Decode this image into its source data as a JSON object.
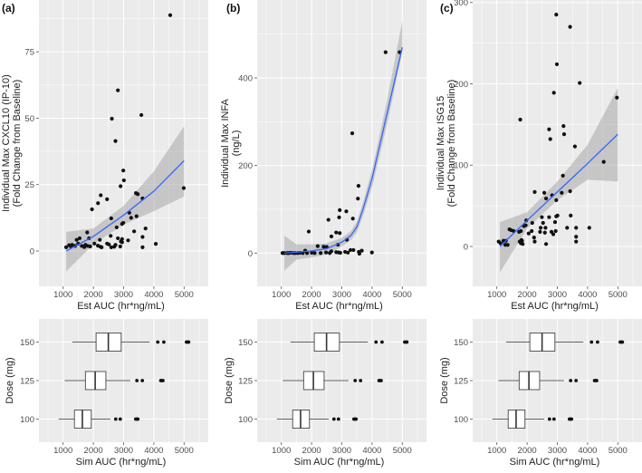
{
  "panel_labels": [
    "(a)",
    "(b)",
    "(c)"
  ],
  "colors": {
    "panel_bg": "#ebebeb",
    "grid": "#ffffff",
    "point": "#111111",
    "fit_line": "#3366ff",
    "band": "#999999",
    "box_fill": "#ffffff",
    "box_line": "#333333"
  },
  "chart_data": [
    {
      "type": "scatter",
      "panel": "(a)",
      "xlabel": "Est AUC (hr*ng/mL)",
      "ylabel": [
        "Individual Max CXCL10 (IP-10)",
        "(Fold Change from Baseline)"
      ],
      "xlim": [
        200,
        5800
      ],
      "ylim": [
        -13.3,
        94.5
      ],
      "xticks": [
        1000,
        2000,
        3000,
        4000,
        5000
      ],
      "xtick_labels": [
        "1000",
        "2000",
        "3000",
        "4000",
        "5000"
      ],
      "yticks": [
        0,
        25,
        50,
        75
      ],
      "ytick_labels": [
        "0",
        "25",
        "50",
        "75"
      ],
      "yminor": [
        12.5,
        37.5,
        62.5,
        87.5
      ],
      "points": [
        [
          4542,
          88.8
        ],
        [
          2811,
          60.5
        ],
        [
          2612,
          49.8
        ],
        [
          3587,
          51.2
        ],
        [
          2731,
          41.4
        ],
        [
          2990,
          30.3
        ],
        [
          3010,
          26.6
        ],
        [
          2900,
          24.4
        ],
        [
          4990,
          23.7
        ],
        [
          2244,
          21
        ],
        [
          2154,
          18
        ],
        [
          2453,
          19.5
        ],
        [
          1955,
          15.7
        ],
        [
          3408,
          21.8
        ],
        [
          3468,
          21.4
        ],
        [
          3627,
          19.8
        ],
        [
          2592,
          12.3
        ],
        [
          3189,
          14.4
        ],
        [
          3249,
          12.5
        ],
        [
          3428,
          13.1
        ],
        [
          3726,
          8.5
        ],
        [
          2950,
          10.2
        ],
        [
          2990,
          10.6
        ],
        [
          2771,
          8.9
        ],
        [
          3348,
          7.4
        ],
        [
          3149,
          4.0
        ],
        [
          3627,
          5.3
        ],
        [
          3627,
          1.4
        ],
        [
          4065,
          2.7
        ],
        [
          2572,
          5.7
        ],
        [
          2811,
          4.8
        ],
        [
          2950,
          4.5
        ],
        [
          2910,
          3.6
        ],
        [
          2890,
          1.7
        ],
        [
          2691,
          1.6
        ],
        [
          2592,
          1.4
        ],
        [
          2453,
          2.8
        ],
        [
          2512,
          2.5
        ],
        [
          2214,
          4.2
        ],
        [
          2234,
          1.6
        ],
        [
          2035,
          2.8
        ],
        [
          1896,
          1.7
        ],
        [
          1796,
          7.0
        ],
        [
          1856,
          4.8
        ],
        [
          1736,
          2.3
        ],
        [
          1816,
          1.9
        ],
        [
          1547,
          4.8
        ],
        [
          1448,
          4.2
        ],
        [
          1498,
          2.8
        ],
        [
          1299,
          2.3
        ],
        [
          1199,
          2.2
        ],
        [
          1100,
          1.4
        ],
        [
          1398,
          1.9
        ],
        [
          1617,
          1.9
        ],
        [
          2274,
          1.4
        ],
        [
          2731,
          2.3
        ],
        [
          2950,
          3.3
        ],
        [
          1250,
          1.8
        ],
        [
          1700,
          1.5
        ],
        [
          2150,
          2.0
        ]
      ],
      "fit": {
        "x": [
          1100,
          2000,
          3000,
          4000,
          5000
        ],
        "y": [
          0,
          5.5,
          13.5,
          22.5,
          34
        ],
        "lo": [
          -7.7,
          2.5,
          10,
          15,
          20.5
        ],
        "hi": [
          7.2,
          8.5,
          17,
          30,
          47
        ]
      }
    },
    {
      "type": "scatter",
      "panel": "(b)",
      "xlabel": "Est AUC (hr*ng/mL)",
      "ylabel": [
        "Individual Max INFA",
        "(ng/L)"
      ],
      "xlim": [
        200,
        5800
      ],
      "ylim": [
        -76,
        578
      ],
      "xticks": [
        1000,
        2000,
        3000,
        4000,
        5000
      ],
      "xtick_labels": [
        "1000",
        "2000",
        "3000",
        "4000",
        "5000"
      ],
      "yticks": [
        0,
        200,
        400
      ],
      "ytick_labels": [
        "0",
        "200",
        "400"
      ],
      "yminor": [
        100,
        300,
        500
      ],
      "points": [
        [
          4448,
          458.7
        ],
        [
          4911,
          458.7
        ],
        [
          3345,
          273.6
        ],
        [
          3552,
          153.4
        ],
        [
          3532,
          124.4
        ],
        [
          2931,
          98.1
        ],
        [
          3148,
          95.3
        ],
        [
          3365,
          78.8
        ],
        [
          2557,
          76.0
        ],
        [
          2911,
          81.5
        ],
        [
          1906,
          49.1
        ],
        [
          2655,
          38.0
        ],
        [
          2813,
          47.0
        ],
        [
          2931,
          45.6
        ],
        [
          3167,
          30.4
        ],
        [
          2872,
          19.3
        ],
        [
          2202,
          15.9
        ],
        [
          2399,
          14.5
        ],
        [
          2500,
          14.0
        ],
        [
          3286,
          6.9
        ],
        [
          3384,
          6.9
        ],
        [
          3562,
          2.8
        ],
        [
          3660,
          5.5
        ],
        [
          3995,
          1.4
        ],
        [
          3108,
          2.8
        ],
        [
          2813,
          2.1
        ],
        [
          2892,
          1.4
        ],
        [
          2655,
          4.1
        ],
        [
          1788,
          5.5
        ],
        [
          1611,
          0.7
        ],
        [
          1315,
          0.7
        ],
        [
          1039,
          0
        ],
        [
          1197,
          0
        ],
        [
          1463,
          0
        ],
        [
          1709,
          0
        ],
        [
          2005,
          0.7
        ],
        [
          2300,
          0
        ],
        [
          2478,
          1.4
        ],
        [
          3581,
          -1.4
        ],
        [
          1100,
          0
        ],
        [
          1250,
          0
        ],
        [
          1400,
          0
        ],
        [
          1550,
          0
        ],
        [
          1850,
          0
        ],
        [
          2100,
          0
        ],
        [
          2600,
          0
        ],
        [
          2950,
          0.5
        ],
        [
          3200,
          1.0
        ]
      ],
      "fit": {
        "x": [
          1100,
          1500,
          2000,
          2500,
          3000,
          3300,
          3500,
          3700,
          4000,
          4500,
          5000
        ],
        "y": [
          0,
          2,
          5,
          10,
          25,
          40,
          60,
          100,
          170,
          320,
          470
        ],
        "lo": [
          -40,
          -15,
          -10,
          -3,
          15,
          30,
          48,
          85,
          150,
          295,
          460
        ],
        "hi": [
          40,
          20,
          20,
          22,
          35,
          50,
          72,
          115,
          190,
          350,
          530
        ]
      }
    },
    {
      "type": "scatter",
      "panel": "(c)",
      "xlabel": "Est AUC (hr*ng/mL)",
      "ylabel": [
        "Individual Max ISG15",
        "(Fold Change from Baseline)"
      ],
      "xlim": [
        200,
        5800
      ],
      "ylim": [
        -49,
        303
      ],
      "xticks": [
        1000,
        2000,
        3000,
        4000,
        5000
      ],
      "xtick_labels": [
        "1000",
        "2000",
        "3000",
        "4000",
        "5000"
      ],
      "yticks": [
        0,
        100,
        200,
        300
      ],
      "ytick_labels": [
        "0",
        "100",
        "200",
        "300"
      ],
      "yminor": [
        50,
        150,
        250
      ],
      "points": [
        [
          2965,
          285
        ],
        [
          3422,
          270
        ],
        [
          2985,
          224
        ],
        [
          3740,
          201
        ],
        [
          2886,
          189
        ],
        [
          4970,
          183
        ],
        [
          1774,
          156
        ],
        [
          3204,
          148
        ],
        [
          2727,
          144
        ],
        [
          3224,
          138
        ],
        [
          2767,
          132
        ],
        [
          3581,
          123
        ],
        [
          4534,
          104
        ],
        [
          3184,
          87
        ],
        [
          2251,
          67
        ],
        [
          3144,
          66
        ],
        [
          2568,
          66
        ],
        [
          3422,
          68
        ],
        [
          2826,
          63
        ],
        [
          2628,
          59
        ],
        [
          2965,
          57
        ],
        [
          1972,
          32
        ],
        [
          2171,
          29
        ],
        [
          2489,
          36
        ],
        [
          2727,
          36
        ],
        [
          2965,
          37
        ],
        [
          3005,
          38
        ],
        [
          3442,
          38
        ],
        [
          2528,
          29
        ],
        [
          2925,
          30
        ],
        [
          2449,
          23
        ],
        [
          2608,
          23
        ],
        [
          3323,
          23
        ],
        [
          3621,
          23
        ],
        [
          4057,
          23
        ],
        [
          2152,
          19
        ],
        [
          2429,
          18
        ],
        [
          2588,
          17
        ],
        [
          2866,
          15
        ],
        [
          2806,
          18
        ],
        [
          2945,
          19
        ],
        [
          3621,
          12
        ],
        [
          3621,
          6
        ],
        [
          2251,
          6
        ],
        [
          2231,
          11
        ],
        [
          2052,
          16
        ],
        [
          1953,
          26
        ],
        [
          1894,
          25
        ],
        [
          1794,
          19
        ],
        [
          1735,
          18
        ],
        [
          1476,
          20
        ],
        [
          1556,
          19
        ],
        [
          1417,
          21
        ],
        [
          1814,
          8
        ],
        [
          1834,
          7
        ],
        [
          1755,
          6
        ],
        [
          1794,
          4
        ],
        [
          1854,
          3
        ],
        [
          2628,
          3
        ],
        [
          1119,
          4
        ],
        [
          1218,
          7
        ],
        [
          1298,
          7
        ],
        [
          1278,
          2
        ],
        [
          1357,
          2
        ],
        [
          1060,
          6
        ]
      ],
      "fit": {
        "x": [
          1100,
          2000,
          3000,
          4000,
          5000
        ],
        "y": [
          0,
          32,
          67,
          102,
          138
        ],
        "lo": [
          -32,
          22,
          57,
          82,
          80
        ],
        "hi": [
          30,
          42,
          80,
          125,
          195
        ]
      }
    },
    {
      "type": "box",
      "panel": "(a)",
      "xlabel": "Sim AUC (hr*ng/mL)",
      "ylabel": "Dose (mg)",
      "xlim": [
        200,
        5800
      ],
      "xticks": [
        1000,
        2000,
        3000,
        4000,
        5000
      ],
      "xtick_labels": [
        "1000",
        "2000",
        "3000",
        "4000",
        "5000"
      ],
      "categories": [
        "100",
        "125",
        "150"
      ],
      "boxes": [
        {
          "dose": "100",
          "lower_whisker": 850,
          "q1": 1374,
          "median": 1636,
          "q3": 1930,
          "upper_whisker": 2565,
          "outliers": [
            2740,
            2890,
            3400,
            3440,
            3470
          ]
        },
        {
          "dose": "125",
          "lower_whisker": 1050,
          "q1": 1737,
          "median": 2060,
          "q3": 2414,
          "upper_whisker": 3220,
          "outliers": [
            3440,
            3620,
            4230,
            4260,
            4300
          ]
        },
        {
          "dose": "150",
          "lower_whisker": 1303,
          "q1": 2090,
          "median": 2495,
          "q3": 2920,
          "upper_whisker": 3860,
          "outliers": [
            4130,
            4330,
            5080,
            5120,
            5150
          ]
        }
      ]
    },
    {
      "type": "box",
      "panel": "(b)",
      "xlabel": "Sim AUC (hr*ng/mL)",
      "ylabel": "Dose (mg)",
      "xlim": [
        200,
        5800
      ],
      "xticks": [
        1000,
        2000,
        3000,
        4000,
        5000
      ],
      "xtick_labels": [
        "1000",
        "2000",
        "3000",
        "4000",
        "5000"
      ],
      "categories": [
        "100",
        "125",
        "150"
      ],
      "boxes": [
        {
          "dose": "100",
          "lower_whisker": 850,
          "q1": 1374,
          "median": 1636,
          "q3": 1930,
          "upper_whisker": 2565,
          "outliers": [
            2740,
            2890,
            3400,
            3440,
            3470
          ]
        },
        {
          "dose": "125",
          "lower_whisker": 1050,
          "q1": 1737,
          "median": 2060,
          "q3": 2414,
          "upper_whisker": 3220,
          "outliers": [
            3440,
            3620,
            4230,
            4260,
            4300
          ]
        },
        {
          "dose": "150",
          "lower_whisker": 1303,
          "q1": 2090,
          "median": 2495,
          "q3": 2920,
          "upper_whisker": 3860,
          "outliers": [
            4130,
            4330,
            5080,
            5120,
            5150
          ]
        }
      ]
    },
    {
      "type": "box",
      "panel": "(c)",
      "xlabel": "Sim AUC (hr*ng/mL)",
      "ylabel": "Dose (mg)",
      "xlim": [
        200,
        5800
      ],
      "xticks": [
        1000,
        2000,
        3000,
        4000,
        5000
      ],
      "xtick_labels": [
        "1000",
        "2000",
        "3000",
        "4000",
        "5000"
      ],
      "categories": [
        "100",
        "125",
        "150"
      ],
      "boxes": [
        {
          "dose": "100",
          "lower_whisker": 850,
          "q1": 1374,
          "median": 1636,
          "q3": 1930,
          "upper_whisker": 2565,
          "outliers": [
            2740,
            2890,
            3400,
            3440,
            3470
          ]
        },
        {
          "dose": "125",
          "lower_whisker": 1050,
          "q1": 1737,
          "median": 2060,
          "q3": 2414,
          "upper_whisker": 3220,
          "outliers": [
            3440,
            3620,
            4230,
            4260,
            4300
          ]
        },
        {
          "dose": "150",
          "lower_whisker": 1303,
          "q1": 2090,
          "median": 2495,
          "q3": 2920,
          "upper_whisker": 3860,
          "outliers": [
            4130,
            4330,
            5080,
            5120,
            5150
          ]
        }
      ]
    }
  ]
}
